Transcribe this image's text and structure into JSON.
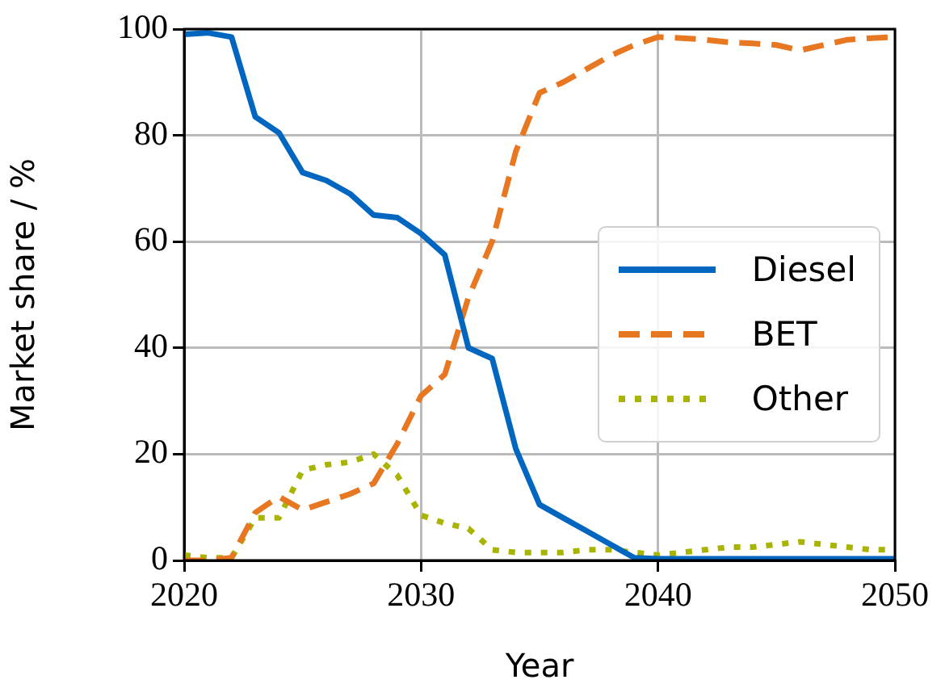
{
  "chart_data": {
    "type": "line",
    "xlabel": "Year",
    "ylabel": "Market share / %",
    "xlim": [
      2020,
      2050
    ],
    "ylim": [
      0,
      100
    ],
    "xticks": [
      2020,
      2030,
      2040,
      2050
    ],
    "yticks": [
      0,
      20,
      40,
      60,
      80,
      100
    ],
    "grid": true,
    "legend": "right",
    "marker": "none",
    "x": [
      2020,
      2021,
      2022,
      2023,
      2024,
      2025,
      2026,
      2027,
      2028,
      2029,
      2030,
      2031,
      2032,
      2033,
      2034,
      2035,
      2036,
      2037,
      2038,
      2039,
      2040,
      2041,
      2042,
      2043,
      2044,
      2045,
      2046,
      2047,
      2048,
      2049,
      2050
    ],
    "series": [
      {
        "name": "Diesel",
        "color": "#0066c0",
        "line_style": "solid",
        "values": [
          99,
          99.3,
          98.5,
          83.5,
          80.5,
          73,
          71.5,
          69,
          65,
          64.5,
          61.5,
          57.5,
          40,
          38,
          21,
          10.5,
          8,
          5.5,
          3,
          0.5,
          0.3,
          0.3,
          0.3,
          0.3,
          0.3,
          0.3,
          0.3,
          0.3,
          0.3,
          0.3,
          0.3
        ]
      },
      {
        "name": "BET",
        "color": "#e87722",
        "line_style": "dashed",
        "values": [
          0,
          0,
          0.5,
          9,
          12,
          9.5,
          11,
          12.5,
          14.5,
          22,
          31,
          35,
          49.5,
          60,
          77,
          88,
          90,
          92.5,
          95,
          97,
          98.5,
          98.3,
          98,
          97.5,
          97.3,
          97,
          96,
          97,
          98,
          98.3,
          98.5
        ]
      },
      {
        "name": "Other",
        "color": "#a8b400",
        "line_style": "dotted",
        "values": [
          1,
          0.5,
          0.5,
          8,
          8,
          17,
          18,
          18.5,
          20,
          16,
          8.5,
          7,
          6,
          2,
          1.5,
          1.5,
          1.5,
          2,
          2,
          1.5,
          1,
          1.5,
          2,
          2.5,
          2.5,
          3,
          3.5,
          3,
          2.5,
          2,
          2
        ]
      }
    ]
  }
}
